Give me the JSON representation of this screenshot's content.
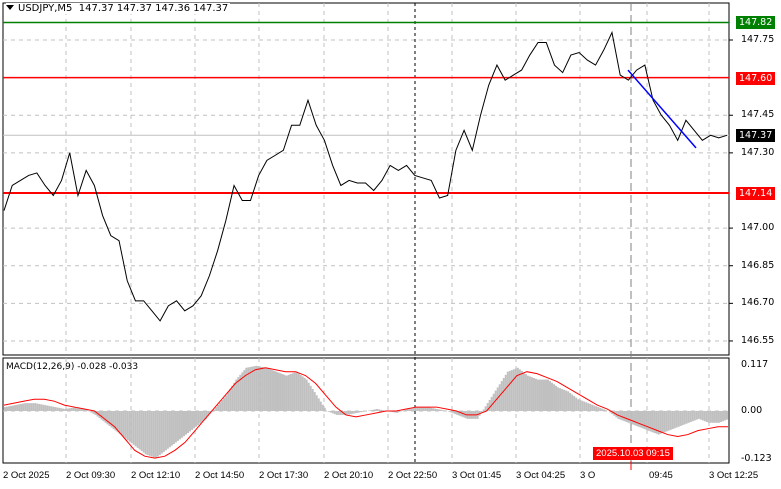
{
  "header": {
    "symbol": "USDJPY,M5",
    "ohlc": "147.37 147.37 147.36 147.37"
  },
  "indicator": {
    "label": "MACD(12,26,9) -0.028 -0.033"
  },
  "colors": {
    "bg": "#ffffff",
    "grid": "#c0c0c0",
    "line": "#000000",
    "resistance": "#ff0000",
    "target": "#008000",
    "trend": "#0000ff",
    "histogram": "#c0c0c0",
    "signal": "#ff0000"
  },
  "price_axis": {
    "ticks": [
      "147.75",
      "147.45",
      "147.30",
      "147.00",
      "146.85",
      "146.70",
      "146.55"
    ],
    "tick_values": [
      147.75,
      147.45,
      147.3,
      147.0,
      146.85,
      146.7,
      146.55
    ],
    "range": [
      146.49,
      147.88
    ]
  },
  "levels": [
    {
      "label": "147.82",
      "value": 147.82,
      "color": "#008000",
      "text_color": "#ffffff"
    },
    {
      "label": "147.60",
      "value": 147.6,
      "color": "#ff0000",
      "text_color": "#ffffff"
    },
    {
      "label": "147.14",
      "value": 147.14,
      "color": "#ff0000",
      "text_color": "#ffffff"
    }
  ],
  "current_price": {
    "label": "147.37",
    "value": 147.37
  },
  "macd_axis": {
    "ticks": [
      "0.117",
      "0.00",
      "-0.123"
    ],
    "tick_values": [
      0.117,
      0.0,
      -0.123
    ]
  },
  "time_axis": {
    "labels": [
      "2 Oct 2025",
      "2 Oct 09:30",
      "2 Oct 12:10",
      "2 Oct 14:50",
      "2 Oct 17:30",
      "2 Oct 20:10",
      "2 Oct 22:50",
      "3 Oct 01:45",
      "3 Oct 04:25",
      "3 O",
      "09:45",
      "3 Oct 12:25"
    ],
    "current": "2025.10.03 09:15"
  },
  "chart_data": {
    "type": "line",
    "title": "USDJPY,M5",
    "price": [
      147.07,
      147.17,
      147.19,
      147.21,
      147.22,
      147.17,
      147.13,
      147.19,
      147.3,
      147.13,
      147.23,
      147.17,
      147.05,
      146.97,
      146.95,
      146.79,
      146.71,
      146.71,
      146.67,
      146.63,
      146.69,
      146.71,
      146.67,
      146.69,
      146.73,
      146.81,
      146.91,
      147.03,
      147.17,
      147.11,
      147.11,
      147.21,
      147.27,
      147.29,
      147.31,
      147.41,
      147.41,
      147.51,
      147.41,
      147.35,
      147.25,
      147.17,
      147.19,
      147.18,
      147.18,
      147.15,
      147.19,
      147.25,
      147.23,
      147.25,
      147.21,
      147.2,
      147.19,
      147.12,
      147.13,
      147.31,
      147.39,
      147.31,
      147.45,
      147.57,
      147.65,
      147.59,
      147.61,
      147.63,
      147.69,
      147.74,
      147.74,
      147.65,
      147.62,
      147.69,
      147.7,
      147.67,
      147.65,
      147.71,
      147.78,
      147.61,
      147.59,
      147.63,
      147.65,
      147.51,
      147.45,
      147.41,
      147.35,
      147.43,
      147.39,
      147.35,
      147.37,
      147.36,
      147.37
    ],
    "trendline": {
      "from": 147.63,
      "to": 147.32
    },
    "macd_histogram": [
      0.01,
      0.015,
      0.02,
      0.02,
      0.015,
      0.01,
      0.005,
      0.01,
      0.005,
      -0.01,
      -0.03,
      -0.05,
      -0.07,
      -0.09,
      -0.11,
      -0.12,
      -0.1,
      -0.08,
      -0.06,
      -0.04,
      -0.02,
      0.01,
      0.04,
      0.08,
      0.11,
      0.115,
      0.11,
      0.1,
      0.09,
      0.1,
      0.08,
      0.04,
      0.0,
      -0.01,
      -0.01,
      -0.005,
      0.0,
      0.005,
      0.0,
      -0.005,
      0.005,
      0.01,
      0.01,
      0.005,
      0.0,
      -0.01,
      -0.02,
      -0.02,
      0.02,
      0.06,
      0.1,
      0.11,
      0.09,
      0.08,
      0.08,
      0.06,
      0.05,
      0.03,
      0.02,
      0.01,
      0.0,
      -0.02,
      -0.03,
      -0.04,
      -0.05,
      -0.06,
      -0.05,
      -0.04,
      -0.03,
      -0.02,
      -0.03,
      -0.03,
      -0.02
    ],
    "macd_signal": [
      0.015,
      0.02,
      0.025,
      0.03,
      0.03,
      0.025,
      0.015,
      0.01,
      0.005,
      0.0,
      -0.02,
      -0.04,
      -0.07,
      -0.1,
      -0.115,
      -0.12,
      -0.115,
      -0.1,
      -0.08,
      -0.05,
      -0.02,
      0.01,
      0.04,
      0.07,
      0.09,
      0.105,
      0.11,
      0.105,
      0.1,
      0.1,
      0.09,
      0.07,
      0.04,
      0.01,
      -0.01,
      -0.015,
      -0.01,
      -0.005,
      0.0,
      0.0,
      0.005,
      0.01,
      0.01,
      0.01,
      0.005,
      0.0,
      -0.01,
      -0.01,
      0.0,
      0.03,
      0.06,
      0.09,
      0.1,
      0.095,
      0.085,
      0.075,
      0.06,
      0.045,
      0.03,
      0.015,
      0.005,
      -0.01,
      -0.02,
      -0.03,
      -0.04,
      -0.05,
      -0.06,
      -0.065,
      -0.06,
      -0.05,
      -0.045,
      -0.04,
      -0.04
    ]
  }
}
